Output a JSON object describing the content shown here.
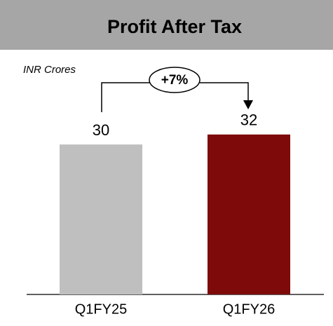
{
  "chart_data": {
    "type": "bar",
    "title": "Profit After Tax",
    "subtitle": "INR Crores",
    "categories": [
      "Q1FY25",
      "Q1FY26"
    ],
    "values": [
      30,
      32
    ],
    "colors": [
      "#bfbfbf",
      "#7f0a0a"
    ],
    "annotation": "+7%"
  }
}
